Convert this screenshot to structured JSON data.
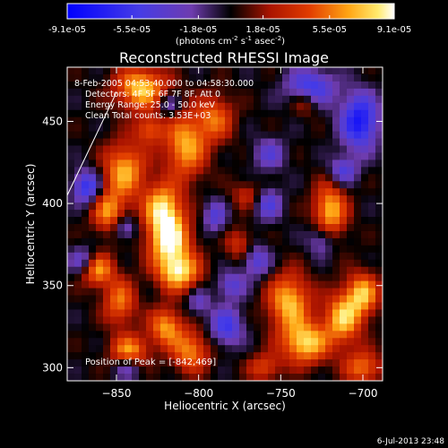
{
  "chart_data": {
    "type": "heatmap",
    "title": "Reconstructed RHESSI Image",
    "xlabel": "Heliocentric X (arcsec)",
    "ylabel": "Heliocentric Y (arcsec)",
    "xlim": [
      -880,
      -688
    ],
    "ylim": [
      292,
      483
    ],
    "x_ticks": [
      -850,
      -800,
      -750,
      -700
    ],
    "y_ticks": [
      300,
      350,
      400,
      450
    ],
    "colorbar": {
      "tick_labels": [
        "-9.1e-05",
        "-5.5e-05",
        "-1.8e-05",
        "1.8e-05",
        "5.5e-05",
        "9.1e-05"
      ],
      "tick_values": [
        -9.1e-05,
        -5.5e-05,
        -1.8e-05,
        1.8e-05,
        5.5e-05,
        9.1e-05
      ],
      "range": [
        -9.1e-05,
        9.1e-05
      ],
      "unit_prefix": "(photons cm",
      "unit_sup1": "-2",
      "unit_mid": " s",
      "unit_sup2": "-1",
      "unit_mid2": " asec",
      "unit_sup3": "-2",
      "unit_suffix": ")"
    },
    "annotations": [
      "8-Feb-2005 04:53:40.000 to 04:58:30.000",
      "Detectors: 4F 5F 6F 7F 8F, Att 0",
      "Energy Range: 25.0 - 50.0 keV",
      "Clean    Total counts: 3.53E+03"
    ],
    "peak_label": "Position of Peak = [-842,469]",
    "peak": [
      -842,
      469
    ],
    "grid": false,
    "colormap": "blue-purple-black-red-yellow-white",
    "blobs": [
      {
        "x": -818,
        "y": 378,
        "sx": 9,
        "sy": 11,
        "a": 1.0
      },
      {
        "x": -812,
        "y": 358,
        "sx": 9,
        "sy": 8,
        "a": 0.85
      },
      {
        "x": -822,
        "y": 398,
        "sx": 8,
        "sy": 10,
        "a": 0.8
      },
      {
        "x": -808,
        "y": 435,
        "sx": 9,
        "sy": 14,
        "a": 0.75
      },
      {
        "x": -835,
        "y": 470,
        "sx": 11,
        "sy": 9,
        "a": 0.85
      },
      {
        "x": -845,
        "y": 420,
        "sx": 9,
        "sy": 12,
        "a": 0.75
      },
      {
        "x": -855,
        "y": 395,
        "sx": 7,
        "sy": 9,
        "a": 0.65
      },
      {
        "x": -862,
        "y": 360,
        "sx": 7,
        "sy": 7,
        "a": 0.75
      },
      {
        "x": -848,
        "y": 340,
        "sx": 7,
        "sy": 10,
        "a": 0.6
      },
      {
        "x": -842,
        "y": 310,
        "sx": 8,
        "sy": 7,
        "a": 0.7
      },
      {
        "x": -820,
        "y": 325,
        "sx": 7,
        "sy": 8,
        "a": 0.7
      },
      {
        "x": -805,
        "y": 310,
        "sx": 8,
        "sy": 9,
        "a": 0.65
      },
      {
        "x": -790,
        "y": 452,
        "sx": 8,
        "sy": 10,
        "a": 0.55
      },
      {
        "x": -775,
        "y": 375,
        "sx": 6,
        "sy": 7,
        "a": 0.4
      },
      {
        "x": -745,
        "y": 340,
        "sx": 9,
        "sy": 12,
        "a": 0.8
      },
      {
        "x": -735,
        "y": 315,
        "sx": 10,
        "sy": 9,
        "a": 0.85
      },
      {
        "x": -712,
        "y": 330,
        "sx": 8,
        "sy": 11,
        "a": 0.8
      },
      {
        "x": -700,
        "y": 345,
        "sx": 7,
        "sy": 9,
        "a": 0.75
      },
      {
        "x": -720,
        "y": 395,
        "sx": 7,
        "sy": 12,
        "a": 0.8
      },
      {
        "x": -735,
        "y": 462,
        "sx": 6,
        "sy": 6,
        "a": 0.45
      },
      {
        "x": -760,
        "y": 300,
        "sx": 7,
        "sy": 6,
        "a": 0.45
      },
      {
        "x": -700,
        "y": 300,
        "sx": 8,
        "sy": 7,
        "a": 0.6
      },
      {
        "x": -770,
        "y": 405,
        "sx": 7,
        "sy": 6,
        "a": 0.35
      },
      {
        "x": -830,
        "y": 445,
        "sx": 6,
        "sy": 6,
        "a": 0.5
      },
      {
        "x": -757,
        "y": 430,
        "sx": 7,
        "sy": 7,
        "a": -0.4
      },
      {
        "x": -732,
        "y": 470,
        "sx": 10,
        "sy": 8,
        "a": -0.7
      },
      {
        "x": -702,
        "y": 450,
        "sx": 8,
        "sy": 12,
        "a": -0.85
      },
      {
        "x": -868,
        "y": 410,
        "sx": 6,
        "sy": 7,
        "a": -0.7
      },
      {
        "x": -870,
        "y": 365,
        "sx": 6,
        "sy": 6,
        "a": -0.5
      },
      {
        "x": -758,
        "y": 400,
        "sx": 6,
        "sy": 7,
        "a": -0.5
      },
      {
        "x": -765,
        "y": 365,
        "sx": 6,
        "sy": 7,
        "a": -0.5
      },
      {
        "x": -790,
        "y": 392,
        "sx": 5,
        "sy": 7,
        "a": -0.45
      },
      {
        "x": -780,
        "y": 350,
        "sx": 6,
        "sy": 6,
        "a": -0.45
      },
      {
        "x": -783,
        "y": 325,
        "sx": 7,
        "sy": 8,
        "a": -0.6
      },
      {
        "x": -725,
        "y": 378,
        "sx": 6,
        "sy": 7,
        "a": -0.45
      },
      {
        "x": -712,
        "y": 420,
        "sx": 6,
        "sy": 6,
        "a": -0.5
      },
      {
        "x": -845,
        "y": 385,
        "sx": 5,
        "sy": 5,
        "a": -0.45
      },
      {
        "x": -843,
        "y": 300,
        "sx": 6,
        "sy": 5,
        "a": -0.4
      },
      {
        "x": -818,
        "y": 460,
        "sx": 5,
        "sy": 5,
        "a": -0.4
      },
      {
        "x": -800,
        "y": 340,
        "sx": 5,
        "sy": 6,
        "a": -0.35
      }
    ]
  },
  "footer": {
    "timestamp": "6-Jul-2013 23:48"
  }
}
